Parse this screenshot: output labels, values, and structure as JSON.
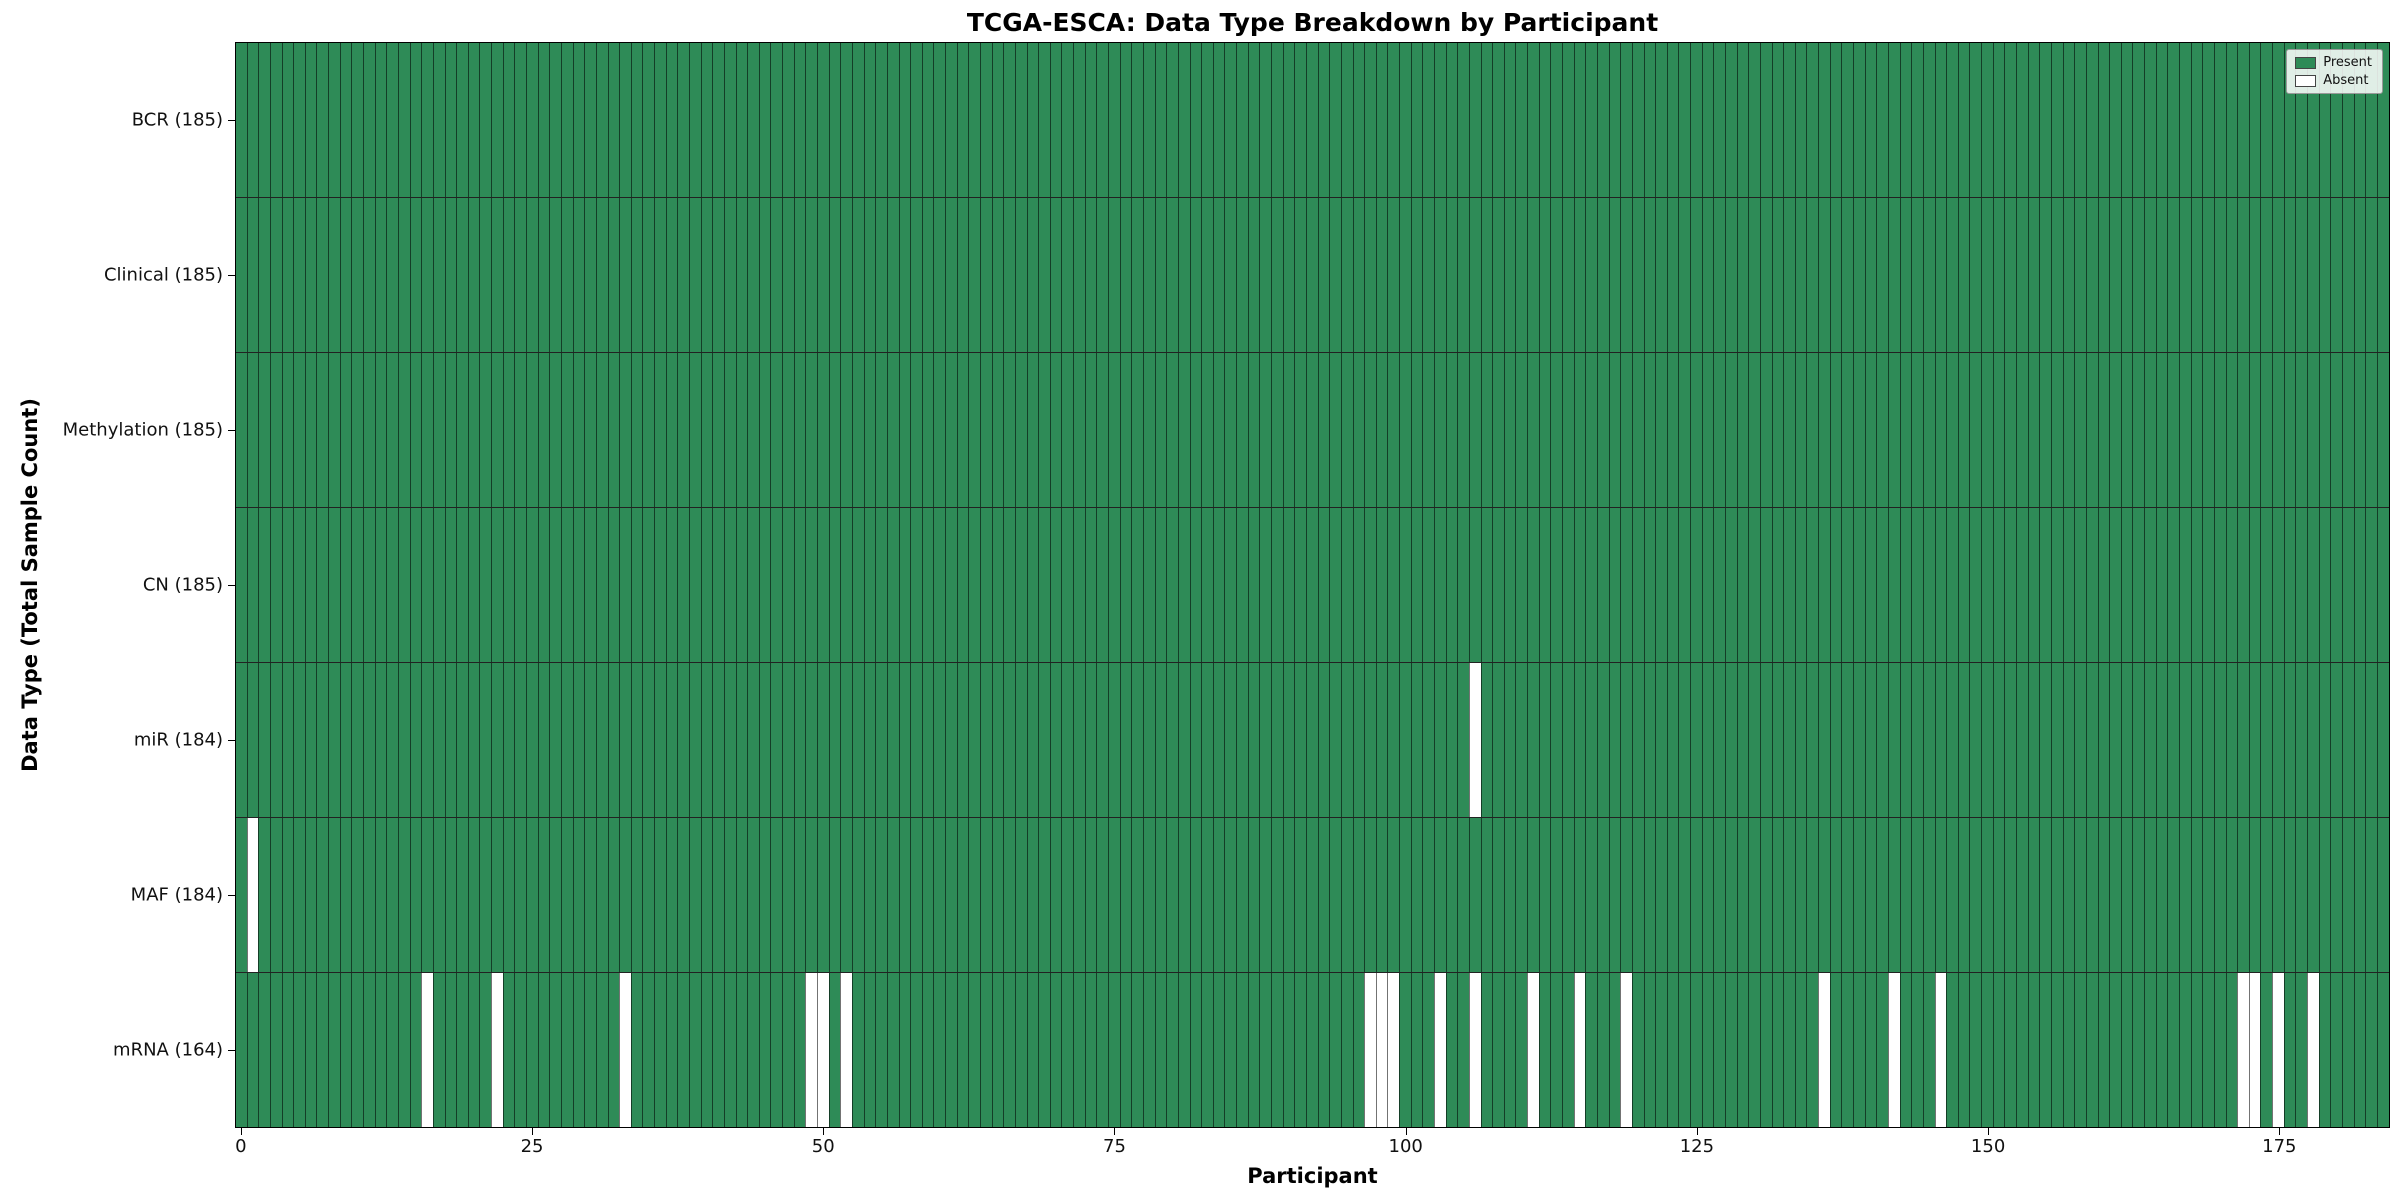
{
  "chart_data": {
    "type": "heatmap",
    "title": "TCGA-ESCA: Data Type Breakdown by Participant",
    "xlabel": "Participant",
    "ylabel": "Data Type (Total Sample Count)",
    "n_participants": 185,
    "x_ticks": [
      0,
      25,
      50,
      75,
      100,
      125,
      150,
      175
    ],
    "rows": [
      {
        "name": "BCR",
        "label": "BCR (185)",
        "present_count": 185,
        "absent_participants": []
      },
      {
        "name": "Clinical",
        "label": "Clinical (185)",
        "present_count": 185,
        "absent_participants": []
      },
      {
        "name": "Methylation",
        "label": "Methylation (185)",
        "present_count": 185,
        "absent_participants": []
      },
      {
        "name": "CN",
        "label": "CN (185)",
        "present_count": 185,
        "absent_participants": []
      },
      {
        "name": "miR",
        "label": "miR (184)",
        "present_count": 184,
        "absent_participants": [
          106
        ]
      },
      {
        "name": "MAF",
        "label": "MAF (184)",
        "present_count": 184,
        "absent_participants": [
          1
        ]
      },
      {
        "name": "mRNA",
        "label": "mRNA (164)",
        "present_count": 164,
        "absent_participants": [
          16,
          22,
          33,
          49,
          50,
          52,
          97,
          98,
          99,
          103,
          106,
          111,
          115,
          119,
          136,
          142,
          146,
          172,
          173,
          175,
          178
        ]
      }
    ],
    "legend": [
      {
        "label": "Present",
        "color": "#2e8b57"
      },
      {
        "label": "Absent",
        "color": "#ffffff"
      }
    ],
    "colors": {
      "present": "#2e8b57",
      "absent": "#ffffff"
    },
    "legend_position": "upper right",
    "grid": "per-participant vertical cell edges"
  }
}
